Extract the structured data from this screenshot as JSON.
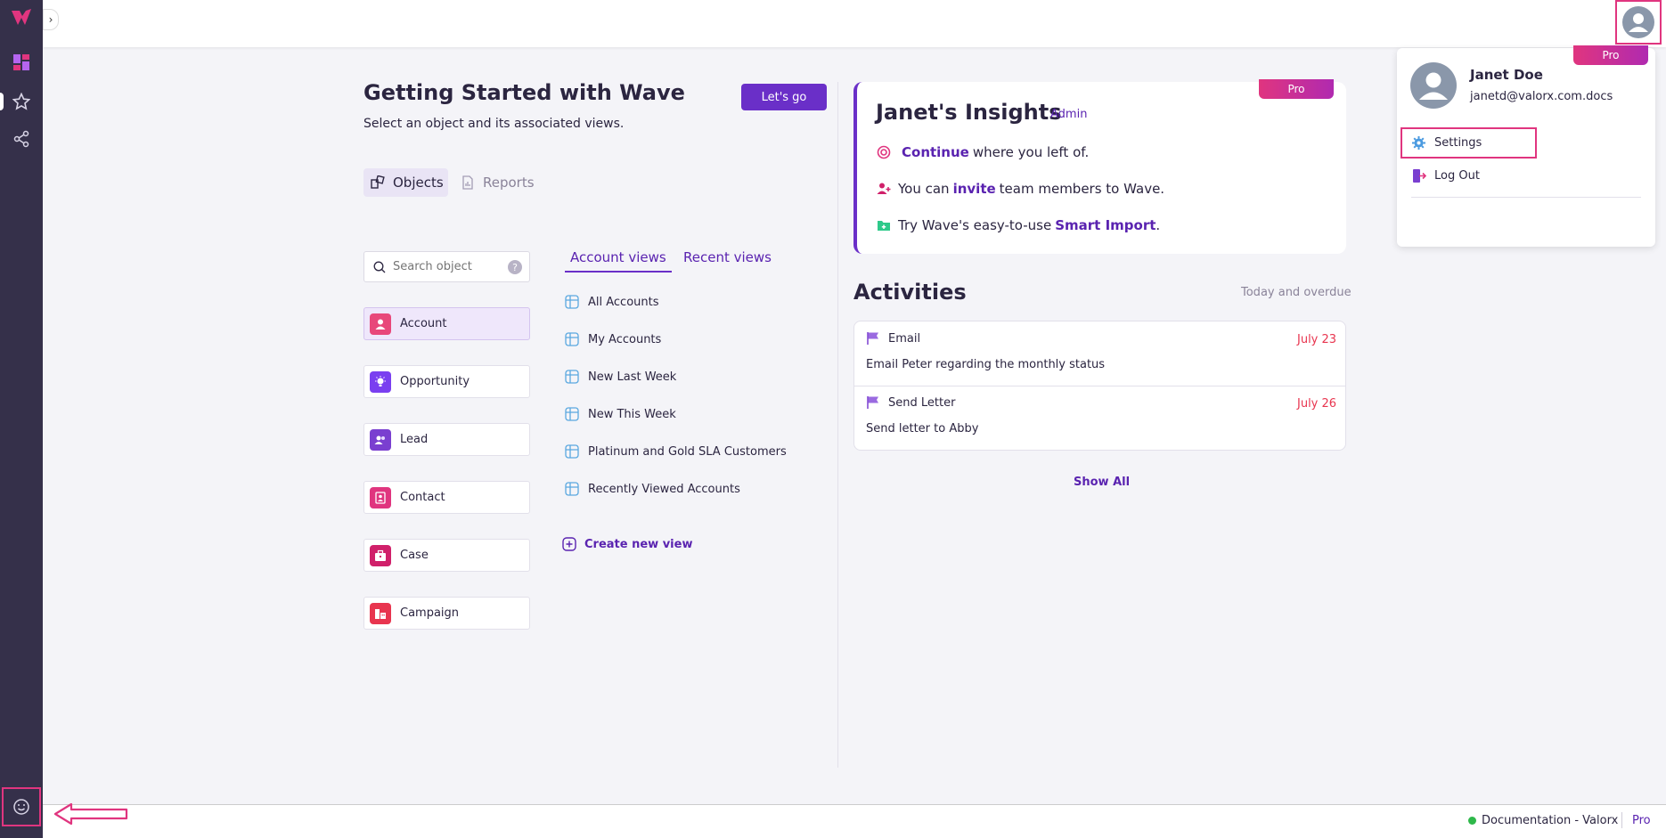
{
  "nav": {
    "logo_icon": "wave-logo-icon",
    "items": [
      {
        "icon": "dashboard-icon"
      },
      {
        "icon": "star-icon"
      },
      {
        "icon": "share-icon"
      }
    ],
    "feedback_icon": "smiley-icon"
  },
  "getting_started": {
    "title": "Getting Started with Wave",
    "subtitle": "Select an object and its associated views.",
    "lets_go": "Let's go",
    "tabs": [
      {
        "label": "Objects",
        "active": true
      },
      {
        "label": "Reports",
        "active": false
      }
    ],
    "search_placeholder": "Search object",
    "help": "?",
    "objects": [
      {
        "label": "Account",
        "color": "#e8477a",
        "selected": true
      },
      {
        "label": "Opportunity",
        "color": "#7a3ff0"
      },
      {
        "label": "Lead",
        "color": "#7a3fd0"
      },
      {
        "label": "Contact",
        "color": "#e0357f"
      },
      {
        "label": "Case",
        "color": "#d0206a"
      },
      {
        "label": "Campaign",
        "color": "#e8354f"
      }
    ],
    "view_tabs": [
      {
        "label": "Account views",
        "active": true
      },
      {
        "label": "Recent views",
        "active": false
      }
    ],
    "views": [
      "All Accounts",
      "My Accounts",
      "New Last Week",
      "New This Week",
      "Platinum and Gold SLA Customers",
      "Recently Viewed Accounts"
    ],
    "create_view": "Create new view"
  },
  "insights": {
    "pro": "Pro",
    "title": "Janet's Insights",
    "badge": "Admin",
    "rows": [
      {
        "pre": "",
        "link": "Continue",
        "post": "where you left of."
      },
      {
        "pre": "You can",
        "link": "invite",
        "post": "team members to Wave."
      },
      {
        "pre": "Try Wave's easy-to-use",
        "link": "Smart Import",
        "post": "."
      }
    ]
  },
  "activities": {
    "title": "Activities",
    "filter": "Today and overdue",
    "items": [
      {
        "type": "Email",
        "date": "July 23",
        "desc": "Email Peter regarding the monthly status"
      },
      {
        "type": "Send Letter",
        "date": "July 26",
        "desc": "Send letter to Abby"
      }
    ],
    "show_all": "Show All"
  },
  "profile_menu": {
    "pro": "Pro",
    "name": "Janet Doe",
    "email": "janetd@valorx.com.docs",
    "settings": "Settings",
    "logout": "Log Out"
  },
  "footer": {
    "status_color": "#2eb84a",
    "doc": "Documentation - Valorx",
    "pro": "Pro"
  },
  "colors": {
    "accent": "#6a2fc8",
    "highlight": "#e0357f",
    "sidebar": "#35304a"
  }
}
